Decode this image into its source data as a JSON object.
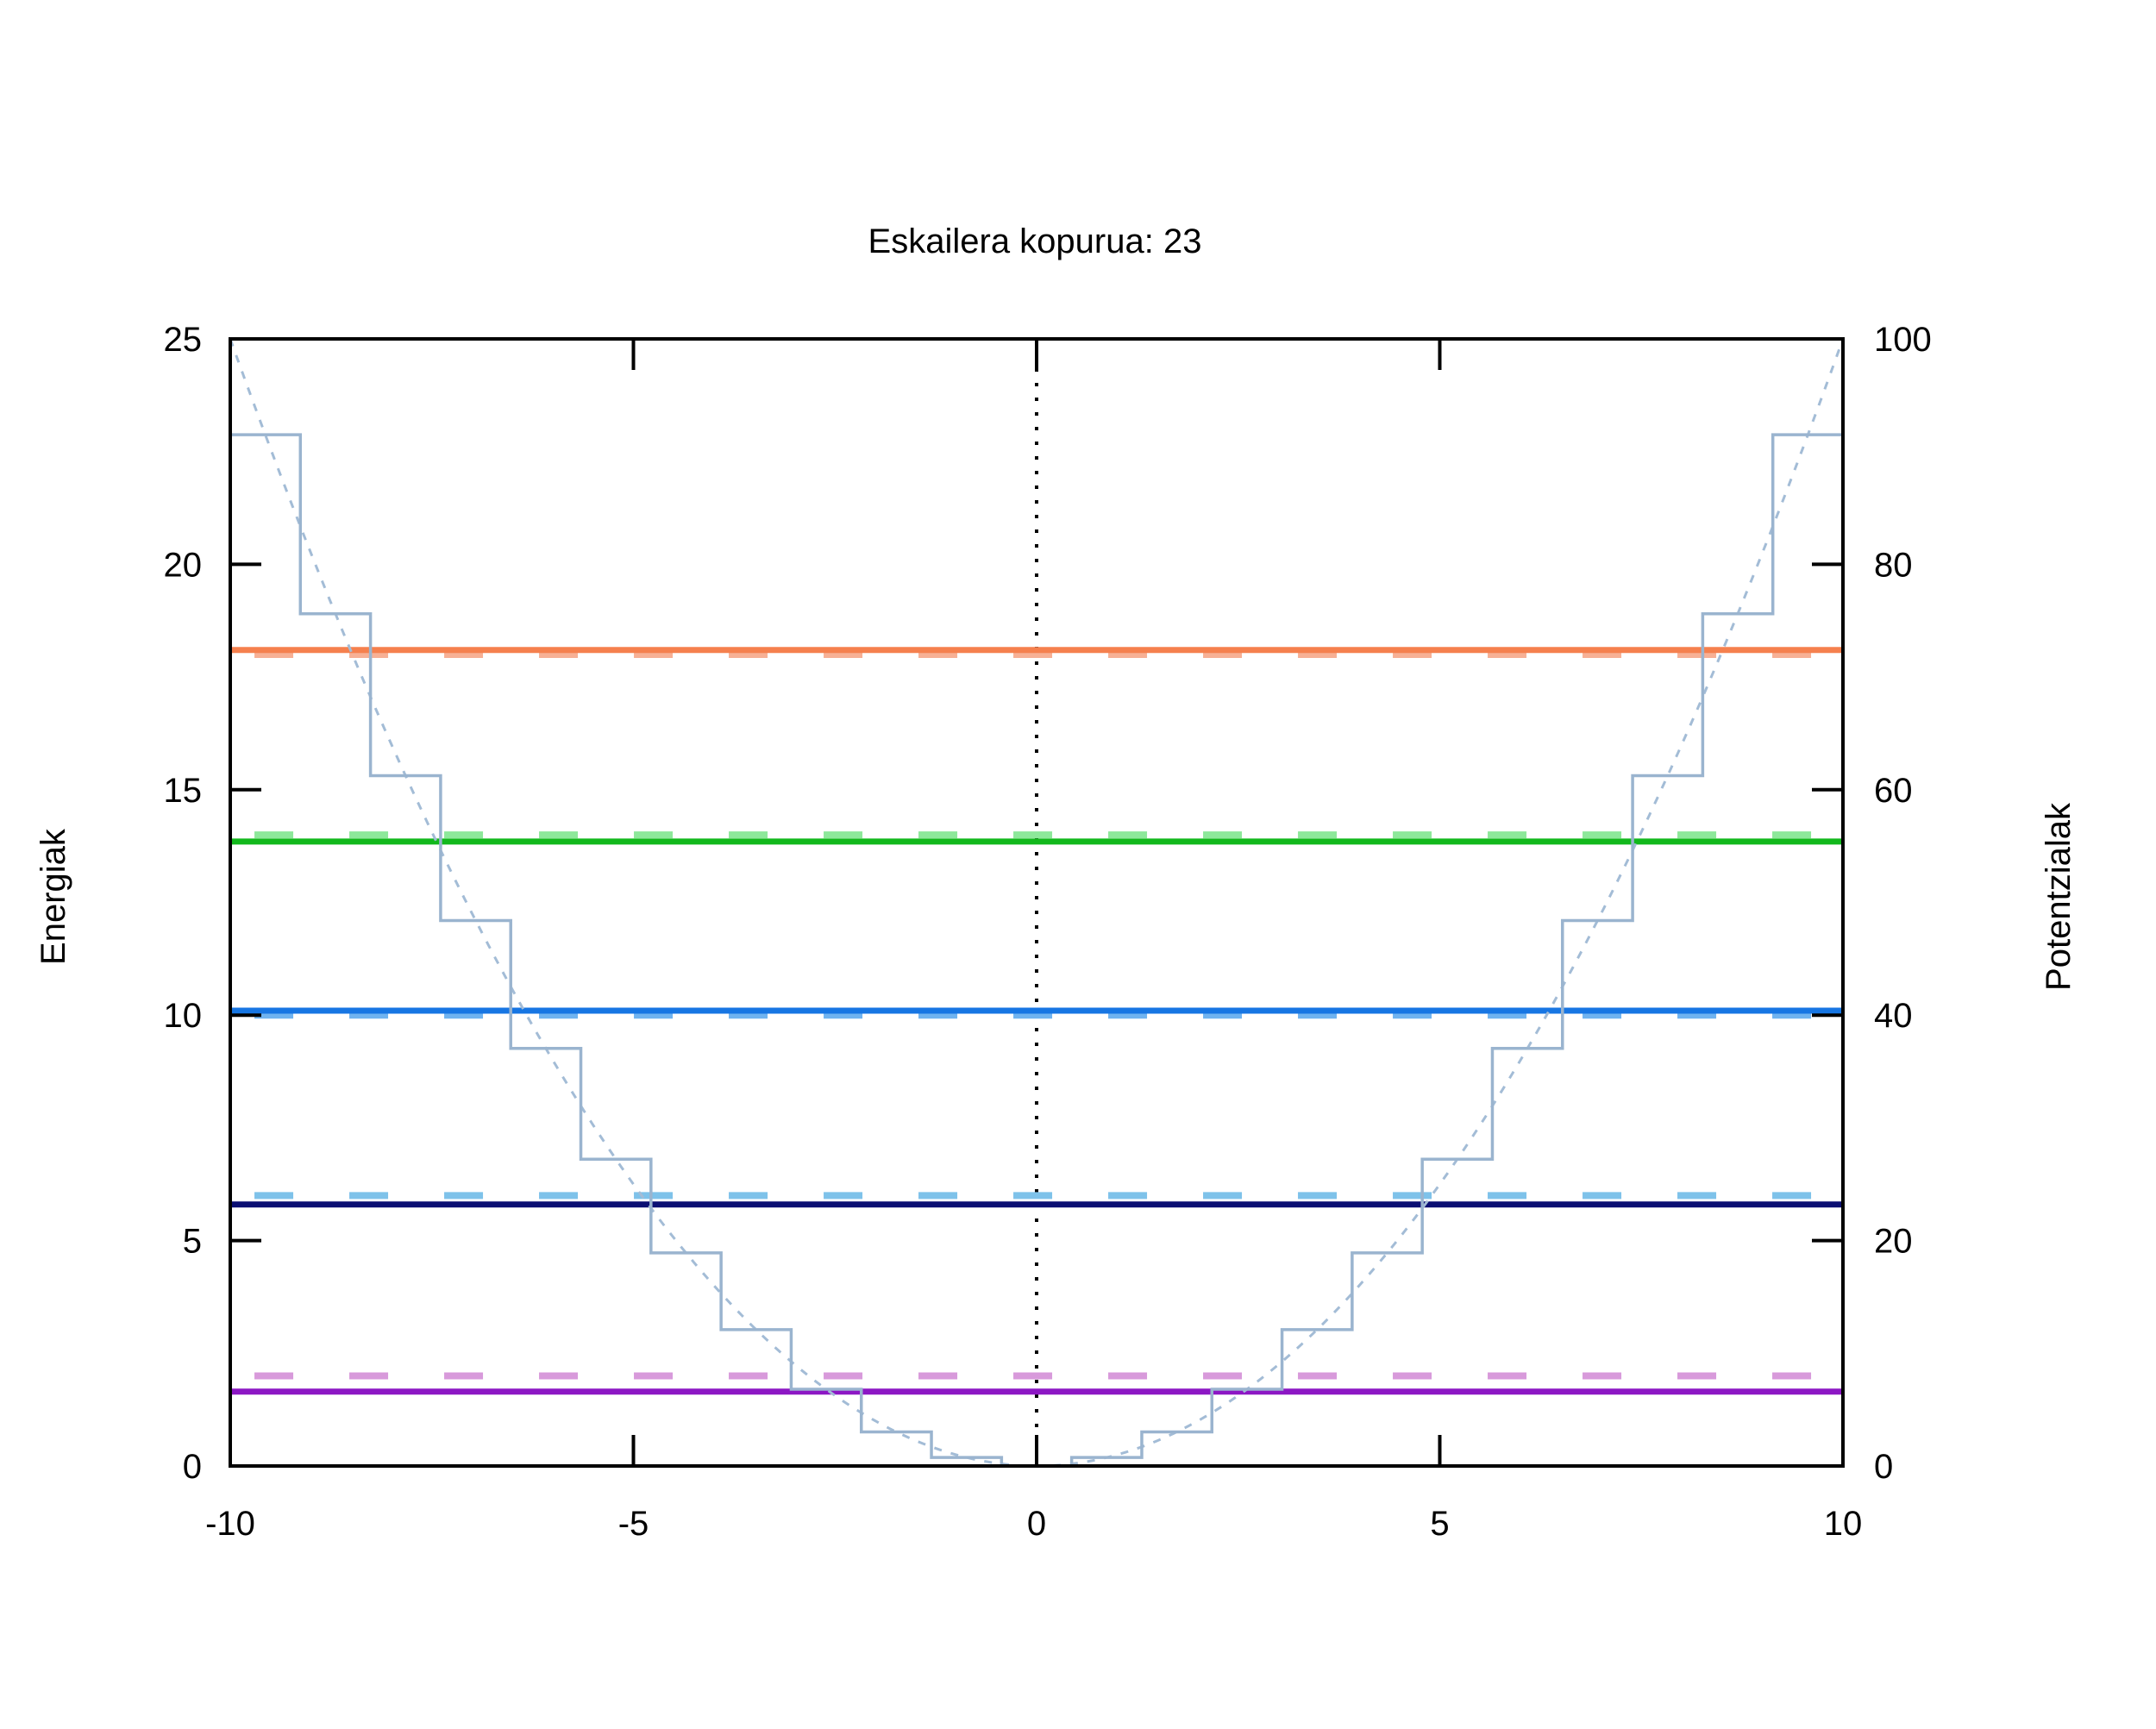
{
  "chart_data": {
    "type": "line",
    "title": "Eskailera kopurua: 23",
    "xlabel": "",
    "ylabel": "Energiak",
    "y2label": "Potentzialak",
    "xlim": [
      -10,
      10
    ],
    "ylim": [
      0,
      25
    ],
    "y2lim": [
      0,
      100
    ],
    "xticks": [
      -10,
      -5,
      0,
      5,
      10
    ],
    "yticks": [
      0,
      5,
      10,
      15,
      20,
      25
    ],
    "y2ticks": [
      0,
      20,
      40,
      60,
      80,
      100
    ],
    "grid": false,
    "legend": "none",
    "zero_line": {
      "x": 0,
      "style": "dotted",
      "color": "#000000"
    },
    "series": [
      {
        "style": "dashed",
        "color": "#d89adb",
        "y": [
          2.0,
          2.0
        ],
        "axis": "left"
      },
      {
        "style": "solid",
        "color": "#8c17c4",
        "y": [
          1.65,
          1.65
        ],
        "axis": "left"
      },
      {
        "style": "dashed",
        "color": "#7ec2ea",
        "y": [
          6.0,
          6.0
        ],
        "axis": "left"
      },
      {
        "style": "solid",
        "color": "#0b0f73",
        "y": [
          5.8,
          5.8
        ],
        "axis": "left"
      },
      {
        "style": "dashed",
        "color": "#6fb3f0",
        "y": [
          10.0,
          10.0
        ],
        "axis": "left"
      },
      {
        "style": "solid",
        "color": "#1776e3",
        "y": [
          10.1,
          10.1
        ],
        "axis": "left"
      },
      {
        "style": "dashed",
        "color": "#8de89a",
        "y": [
          14.0,
          14.0
        ],
        "axis": "left"
      },
      {
        "style": "solid",
        "color": "#12b81c",
        "y": [
          13.85,
          13.85
        ],
        "axis": "left"
      },
      {
        "style": "dashed",
        "color": "#f7b095",
        "y": [
          18.0,
          18.0
        ],
        "axis": "left"
      },
      {
        "style": "solid",
        "color": "#f5804e",
        "y": [
          18.1,
          18.1
        ],
        "axis": "left"
      },
      {
        "style": "dotted-curve",
        "color": "#a3bcd6",
        "formula_coeff": 1.0,
        "axis": "right"
      },
      {
        "style": "staircase",
        "color": "#9ab4cf",
        "steps": 23,
        "axis": "right"
      }
    ]
  }
}
